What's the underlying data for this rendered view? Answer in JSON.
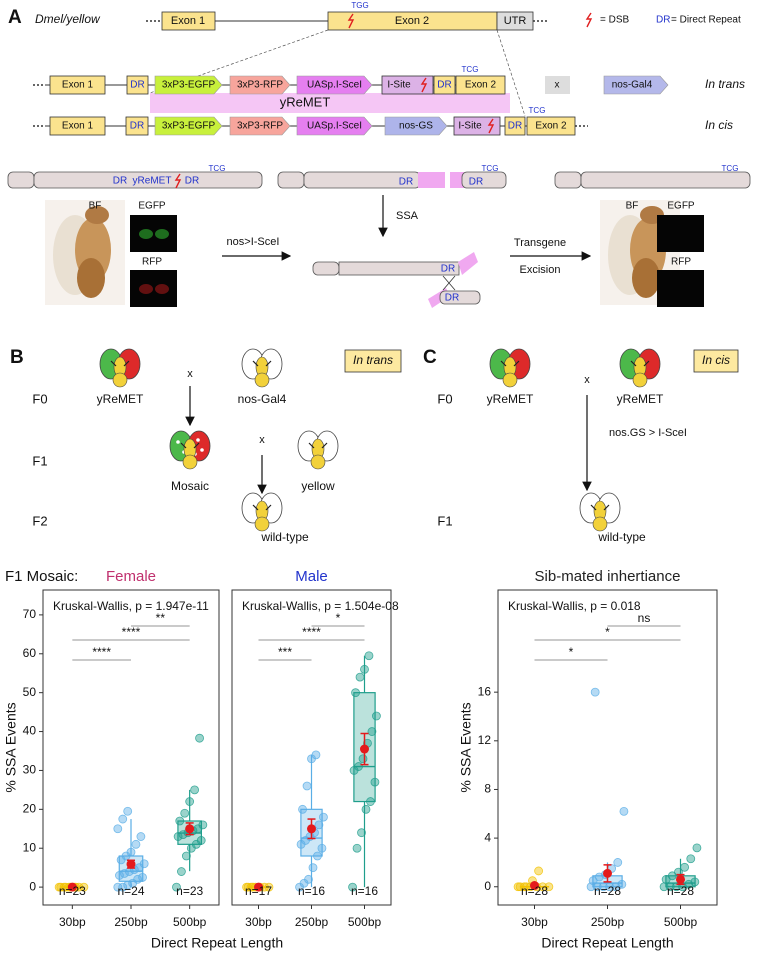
{
  "panel_a": {
    "label": "A",
    "locus": "Dmel/yellow",
    "locus_parts": [
      "Exon 1",
      "Exon 2",
      "UTR"
    ],
    "cut_site": "TGG",
    "legend_dsb": "= DSB",
    "legend_dr": "DR",
    "legend_dr_text": "= Direct Repeat",
    "trans_parts": [
      "Exon 1",
      "DR",
      "3xP3-EGFP",
      "3xP3-RFP",
      "UASp.I-SceI",
      "I-Site",
      "DR",
      "Exon 2"
    ],
    "trans_codon": "TCG",
    "cross": "x",
    "driver": "nos-Gal4",
    "trans_label": "In trans",
    "construct": "yReMET",
    "cis_parts": [
      "Exon 1",
      "DR",
      "3xP3-EGFP",
      "3xP3-RFP",
      "UASp.I-SceI",
      "nos-GS",
      "I-Site",
      "DR",
      "Exon 2"
    ],
    "cis_codon": "TCG",
    "cis_label": "In cis",
    "chrom_before": [
      "DR",
      "yReMET",
      "DR",
      "TCG"
    ],
    "chrom_cut": [
      "DR",
      "DR",
      "TCG"
    ],
    "chrom_after": [
      "TCG"
    ],
    "annealed": [
      "DR",
      "DR"
    ],
    "step_cut": "nos>I-SceI",
    "step_ssa": "SSA",
    "step_excision": [
      "Transgene",
      "Excision"
    ],
    "fly_before": [
      "BF",
      "EGFP",
      "RFP"
    ],
    "fly_after": [
      "BF",
      "EGFP",
      "RFP"
    ]
  },
  "panel_b": {
    "label": "B",
    "generations": [
      "F0",
      "F1",
      "F2"
    ],
    "mode": "In trans",
    "f0": [
      "yReMET",
      "x",
      "nos-Gal4"
    ],
    "f1": [
      "Mosaic",
      "x",
      "yellow"
    ],
    "f2": "wild-type"
  },
  "panel_c": {
    "label": "C",
    "generations": [
      "F0",
      "F1"
    ],
    "mode": "In cis",
    "f0": [
      "yReMET",
      "x",
      "yReMET"
    ],
    "step": "nos.GS > I-SceI",
    "f1": "wild-type"
  },
  "panel_d": {
    "title": "F1 Mosaic:",
    "xlabel": "Direct Repeat Length"
  },
  "chart_data": [
    {
      "type": "box",
      "title": "Female",
      "title_color": "#c0306e",
      "ylabel": "% SSA Events",
      "annotation": "Kruskal-Wallis, p = 1.947e-11",
      "categories": [
        "30bp",
        "250bp",
        "500bp"
      ],
      "colors": [
        "#f2c200",
        "#5aaee6",
        "#1f9e8c"
      ],
      "mean_color": "#e41a1c",
      "ylim": [
        -4.6,
        76.4
      ],
      "yticks": [
        0,
        10,
        20,
        30,
        40,
        50,
        60,
        70
      ],
      "boxes": [
        {
          "whislo": 0,
          "q1": 0,
          "med": 0,
          "q3": 0,
          "whishi": 0,
          "mean": 0,
          "err": 0,
          "n_label": "n=23",
          "points": [
            0,
            0,
            0,
            0,
            0,
            0,
            0,
            0,
            0,
            0
          ]
        },
        {
          "whislo": 0,
          "q1": 1.5,
          "med": 4.1,
          "q3": 8,
          "whishi": 17.5,
          "mean": 5.9,
          "err": 1,
          "n_label": "n=24",
          "points": [
            0,
            0,
            0.5,
            1,
            2,
            2.5,
            3,
            3.5,
            4,
            4.5,
            5,
            6,
            7,
            8,
            9,
            11,
            13,
            15,
            17.5,
            19.5
          ]
        },
        {
          "whislo": 4.1,
          "q1": 11,
          "med": 13.9,
          "q3": 17,
          "whishi": 25,
          "mean": 15,
          "err": 1.5,
          "n_label": "n=23",
          "points": [
            0,
            4,
            8,
            10,
            11,
            12,
            13,
            13.5,
            14,
            14.5,
            15,
            16,
            17,
            19,
            22,
            25,
            38.3
          ]
        }
      ],
      "comparisons": [
        "****",
        "****",
        "**"
      ]
    },
    {
      "type": "box",
      "title": "Male",
      "title_color": "#2233cc",
      "annotation": "Kruskal-Wallis, p = 1.504e-08",
      "categories": [
        "30bp",
        "250bp",
        "500bp"
      ],
      "colors": [
        "#f2c200",
        "#5aaee6",
        "#1f9e8c"
      ],
      "mean_color": "#e41a1c",
      "ylim": [
        -4.6,
        76.4
      ],
      "boxes": [
        {
          "whislo": 0,
          "q1": 0,
          "med": 0,
          "q3": 0,
          "whishi": 0,
          "mean": 0,
          "err": 0,
          "n_label": "n=17",
          "points": [
            0,
            0,
            0,
            0,
            0,
            0,
            0,
            0
          ]
        },
        {
          "whislo": 0,
          "q1": 8,
          "med": 12.6,
          "q3": 20,
          "whishi": 34,
          "mean": 15,
          "err": 2.5,
          "n_label": "n=16",
          "points": [
            0,
            1,
            2,
            5,
            8,
            10,
            11,
            12,
            13,
            14,
            16,
            18,
            20,
            26,
            33,
            34
          ]
        },
        {
          "whislo": 0,
          "q1": 22,
          "med": 31,
          "q3": 50,
          "whishi": 59.5,
          "mean": 35.5,
          "err": 4,
          "n_label": "n=16",
          "points": [
            0,
            10,
            14,
            20,
            22,
            27,
            30,
            31,
            33,
            37,
            40,
            44,
            50,
            54,
            56,
            59.5
          ]
        }
      ],
      "comparisons": [
        "***",
        "****",
        "*"
      ]
    },
    {
      "type": "box",
      "title": "Sib-mated inhertiance",
      "title_color": "#222222",
      "ylabel": "% SSA Events",
      "xlabel": "Direct Repeat Length",
      "annotation": "Kruskal-Wallis, p = 0.018",
      "categories": [
        "30bp",
        "250bp",
        "500bp"
      ],
      "colors": [
        "#f2c200",
        "#5aaee6",
        "#1f9e8c"
      ],
      "mean_color": "#e41a1c",
      "ylim": [
        -1.5,
        24.4
      ],
      "yticks": [
        0,
        4,
        8,
        12,
        16
      ],
      "boxes": [
        {
          "whislo": 0,
          "q1": 0,
          "med": 0,
          "q3": 0,
          "whishi": 0,
          "mean": 0.1,
          "err": 0.05,
          "n_label": "n=28",
          "points": [
            0,
            0,
            0,
            0,
            0,
            0,
            0,
            0,
            0.5,
            1.3
          ]
        },
        {
          "whislo": 0,
          "q1": 0,
          "med": 0.3,
          "q3": 0.9,
          "whishi": 2,
          "mean": 1.1,
          "err": 0.7,
          "n_label": "n=28",
          "points": [
            0,
            0,
            0,
            0,
            0,
            0.2,
            0.5,
            0.8,
            1,
            1.5,
            2,
            6.2,
            16
          ]
        },
        {
          "whislo": 0,
          "q1": 0,
          "med": 0.3,
          "q3": 0.9,
          "whishi": 2.3,
          "mean": 0.6,
          "err": 0.4,
          "n_label": "n=28",
          "points": [
            0,
            0,
            0,
            0,
            0.2,
            0.4,
            0.6,
            0.9,
            1.2,
            1.6,
            2.3,
            3.2
          ]
        }
      ],
      "comparisons": [
        "*",
        "*",
        "ns"
      ]
    }
  ]
}
